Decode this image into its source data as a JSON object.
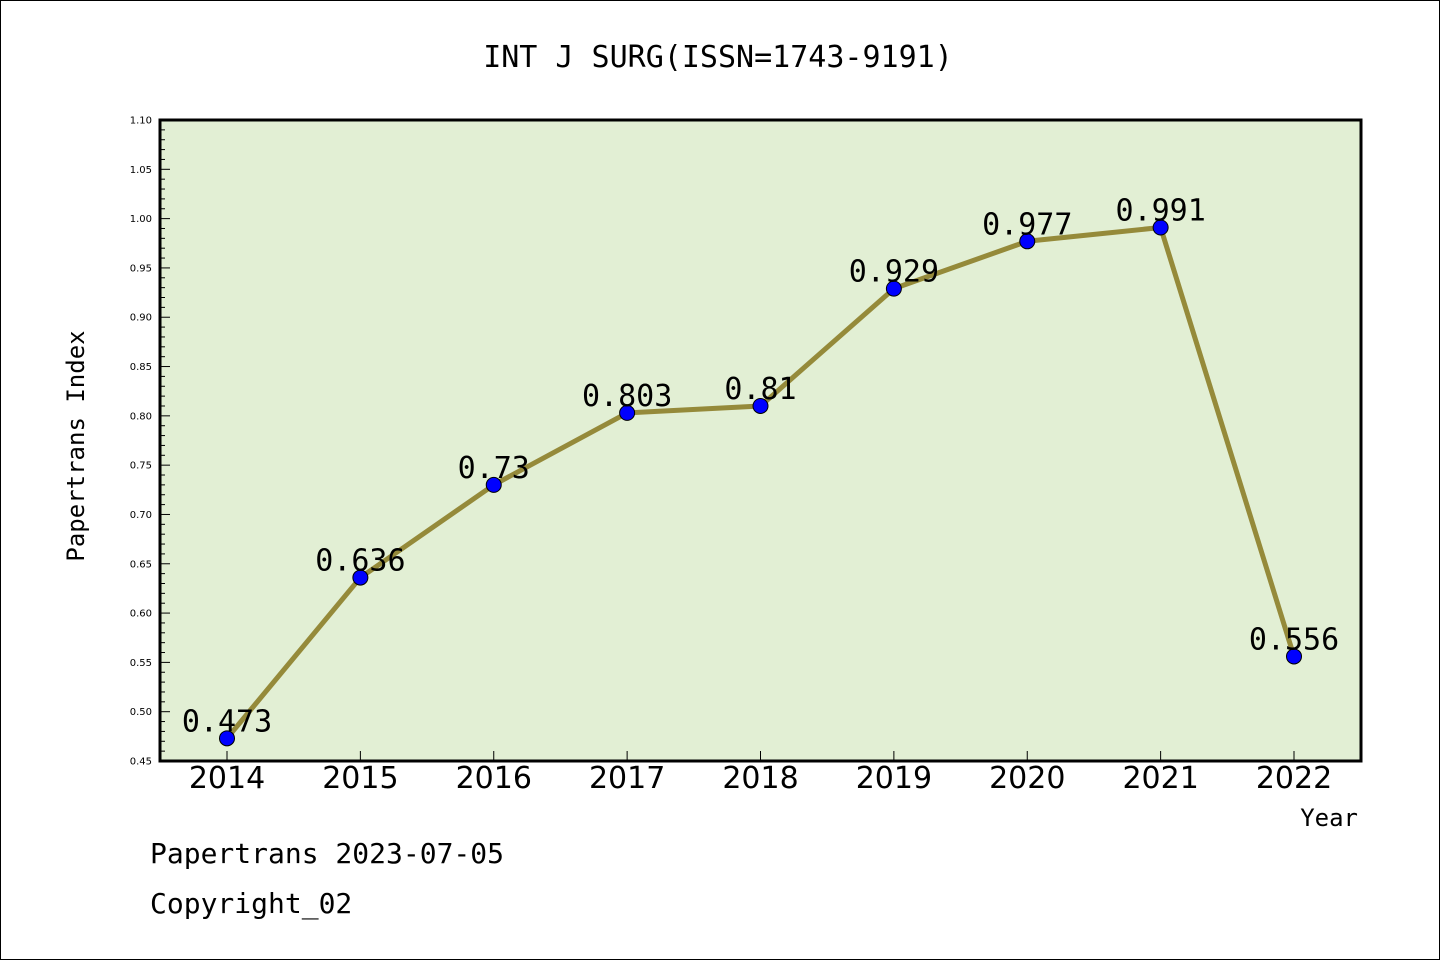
{
  "chart_data": {
    "type": "line",
    "title": "INT J SURG(ISSN=1743-9191)",
    "xlabel": "Year",
    "ylabel": "Papertrans Index",
    "categories": [
      "2014",
      "2015",
      "2016",
      "2017",
      "2018",
      "2019",
      "2020",
      "2021",
      "2022"
    ],
    "values": [
      0.473,
      0.636,
      0.73,
      0.803,
      0.81,
      0.929,
      0.977,
      0.991,
      0.556
    ],
    "data_labels": [
      "0.473",
      "0.636",
      "0.73",
      "0.803",
      "0.81",
      "0.929",
      "0.977",
      "0.991",
      "0.556"
    ],
    "ylim": [
      0.45,
      1.1
    ],
    "yticks": [
      "0.45",
      "0.50",
      "0.55",
      "0.60",
      "0.65",
      "0.70",
      "0.75",
      "0.80",
      "0.85",
      "0.90",
      "0.95",
      "1.00",
      "1.05",
      "1.10"
    ],
    "grid": false,
    "colors": {
      "plot_background": "#e2efd4",
      "line": "#958a3a",
      "marker": "#0000ff"
    }
  },
  "footer": {
    "line1": "Papertrans 2023-07-05",
    "line2": "Copyright_02"
  }
}
